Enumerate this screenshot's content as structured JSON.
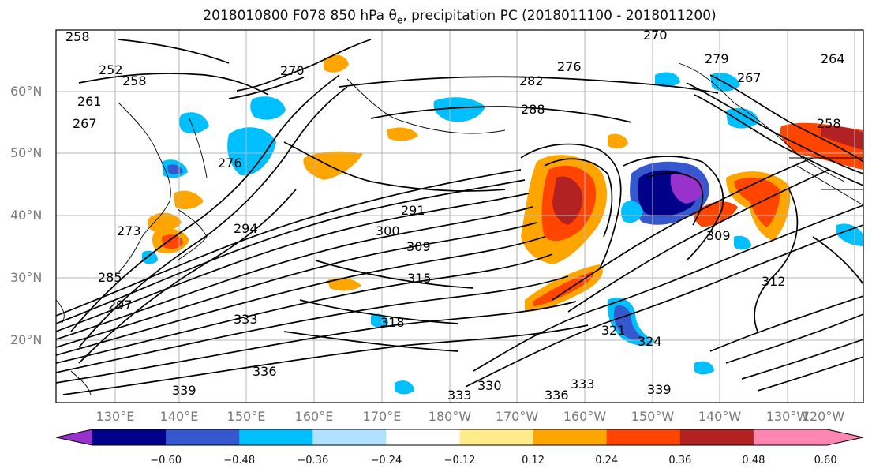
{
  "title": {
    "prefix": "2018010800 F078 850 hPa ",
    "symbol": "θ",
    "subscript": "e",
    "suffix": ", precipitation PC (2018011100 - 2018011200)"
  },
  "map": {
    "lat_labels": [
      "60°N",
      "50°N",
      "40°N",
      "30°N",
      "20°N"
    ],
    "lon_labels": [
      "130°E",
      "140°E",
      "150°E",
      "160°E",
      "170°E",
      "180°W",
      "170°W",
      "160°W",
      "150°W",
      "140°W",
      "130°W",
      "120°W"
    ],
    "contour_labels": [
      "258",
      "252",
      "258",
      "261",
      "267",
      "276",
      "270",
      "282",
      "288",
      "291",
      "300",
      "309",
      "315",
      "318",
      "333",
      "336",
      "339",
      "333",
      "330",
      "336",
      "333",
      "339",
      "321",
      "324",
      "309",
      "312",
      "297",
      "276",
      "279",
      "264",
      "258",
      "270",
      "267",
      "294",
      "285",
      "273"
    ]
  },
  "colorbar": {
    "ticks": [
      "−0.60",
      "−0.48",
      "−0.36",
      "−0.24",
      "−0.12",
      "0.12",
      "0.24",
      "0.36",
      "0.48",
      "0.60"
    ],
    "colors": [
      "#9932cc",
      "#00008b",
      "#3658cf",
      "#00bfff",
      "#b0e2ff",
      "#ffffff",
      "#ffec8b",
      "#ffa500",
      "#ff4500",
      "#b22222",
      "#ff86b0",
      "#ff86b0"
    ]
  }
}
